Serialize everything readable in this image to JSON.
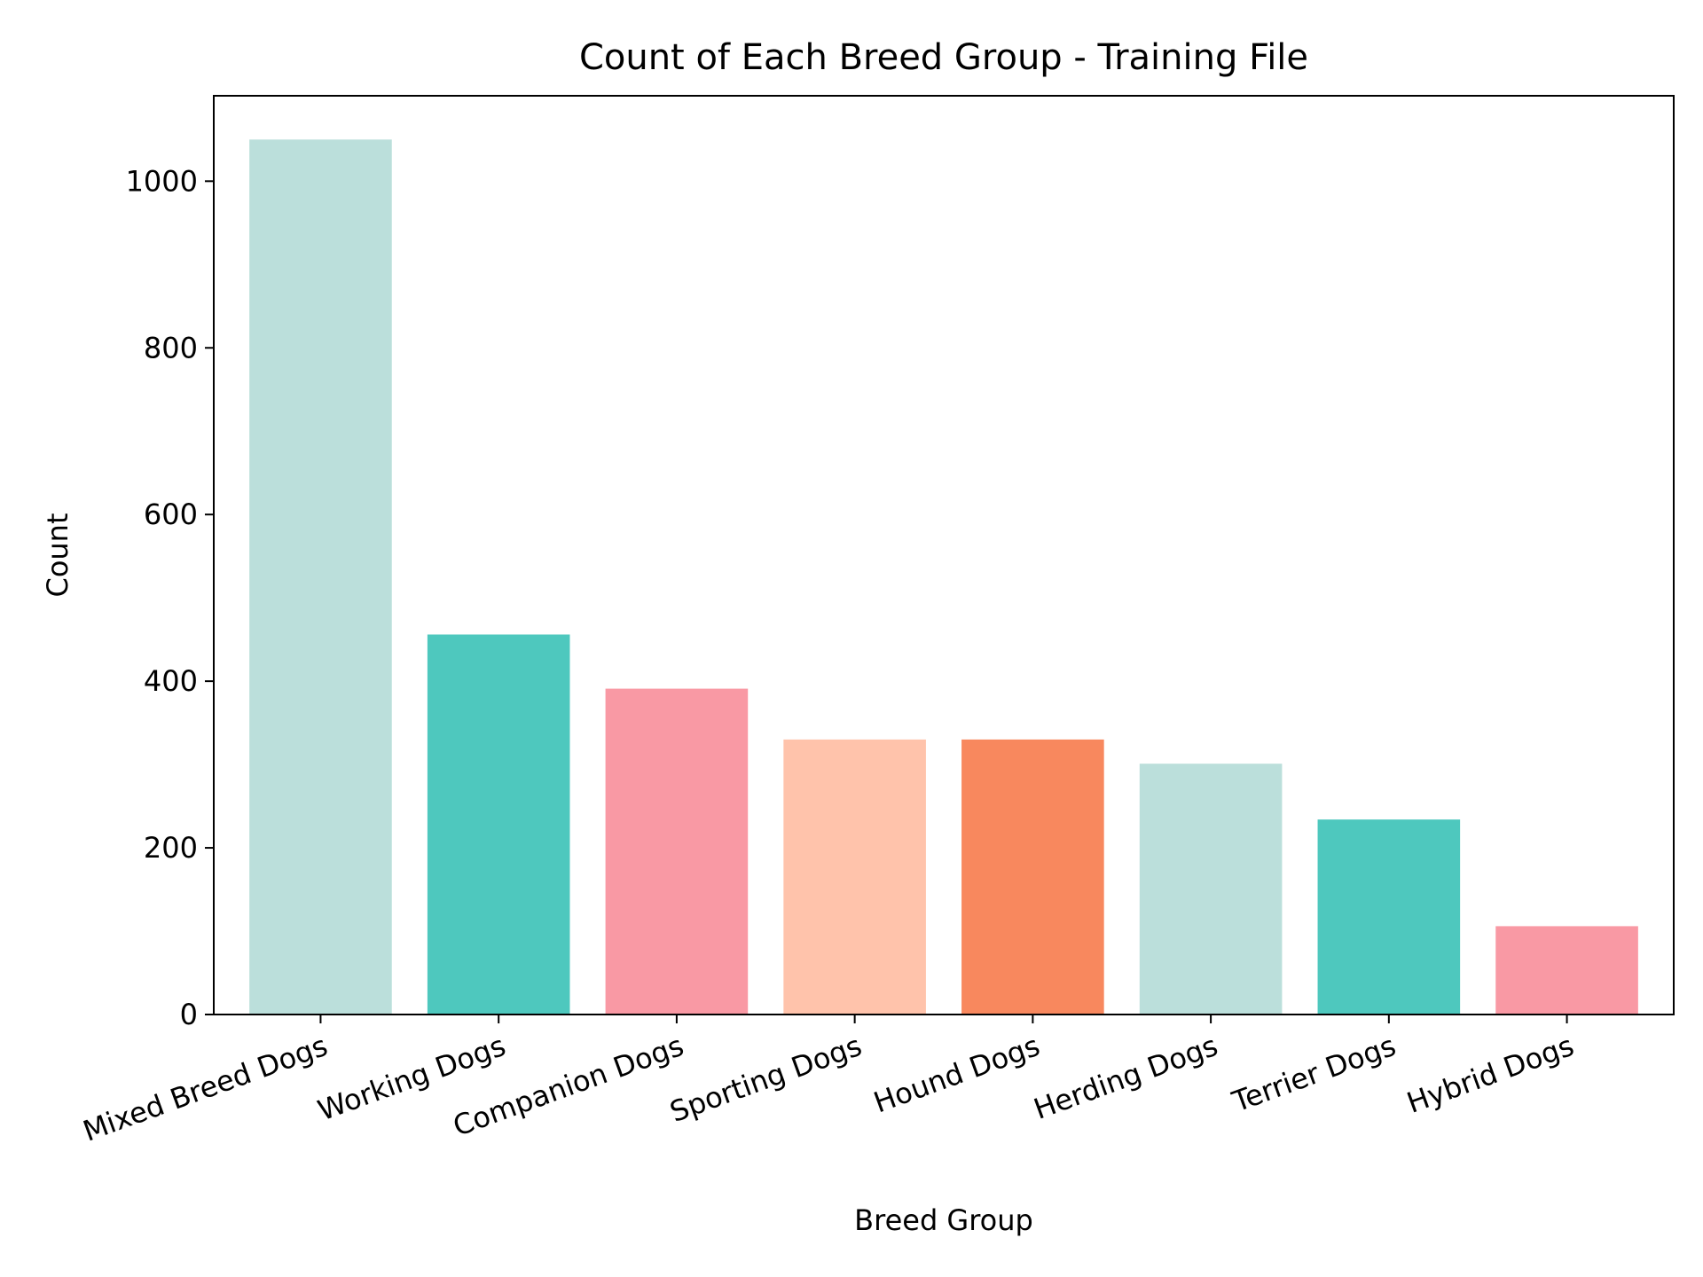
{
  "chart_data": {
    "type": "bar",
    "title": "Count of Each Breed Group - Training File",
    "xlabel": "Breed Group",
    "ylabel": "Count",
    "categories": [
      "Mixed Breed Dogs",
      "Working Dogs",
      "Companion Dogs",
      "Sporting Dogs",
      "Hound Dogs",
      "Herding Dogs",
      "Terrier Dogs",
      "Hybrid Dogs"
    ],
    "values": [
      1050,
      456,
      391,
      330,
      330,
      301,
      234,
      106
    ],
    "colors": [
      "#bbdfdb",
      "#4ec8be",
      "#f999a4",
      "#ffc3ab",
      "#f8885e",
      "#bbdfdb",
      "#4ec8be",
      "#f999a4"
    ],
    "ylim": [
      0,
      1102.5
    ],
    "yticks": [
      0,
      200,
      400,
      600,
      800,
      1000
    ],
    "xtick_rotation_deg": 20,
    "grid": false,
    "legend": "none"
  }
}
